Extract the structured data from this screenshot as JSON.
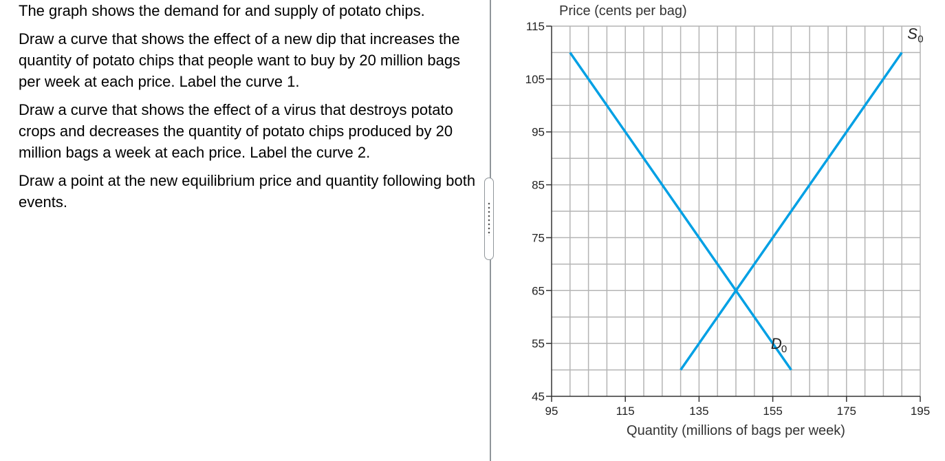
{
  "question": {
    "paragraphs": [
      "The graph shows the demand for and supply of potato chips.",
      "Draw a curve that shows the effect of a new dip that increases the quantity of potato chips that people want to buy by 20 million bags per week at each price. Label the curve 1.",
      "Draw a curve that shows the effect of a virus that destroys potato crops and decreases the quantity of potato chips produced by 20 million bags a week at each price. Label the curve 2.",
      "Draw a point at the new equilibrium price and quantity following both events."
    ]
  },
  "chart_data": {
    "type": "line",
    "ylabel": "Price (cents per bag)",
    "xlabel": "Quantity (millions of bags per week)",
    "xlim": [
      95,
      195
    ],
    "ylim": [
      45,
      115
    ],
    "x_ticks": [
      95,
      115,
      135,
      155,
      175,
      195
    ],
    "y_ticks": [
      115,
      105,
      95,
      85,
      75,
      65,
      55,
      45
    ],
    "grid": true,
    "series": [
      {
        "name": "D",
        "subscript": "0",
        "color": "#00a0e4",
        "points": [
          [
            100,
            110
          ],
          [
            160,
            50
          ]
        ]
      },
      {
        "name": "S",
        "subscript": "0",
        "color": "#00a0e4",
        "points": [
          [
            130,
            50
          ],
          [
            190,
            110
          ]
        ]
      }
    ]
  }
}
